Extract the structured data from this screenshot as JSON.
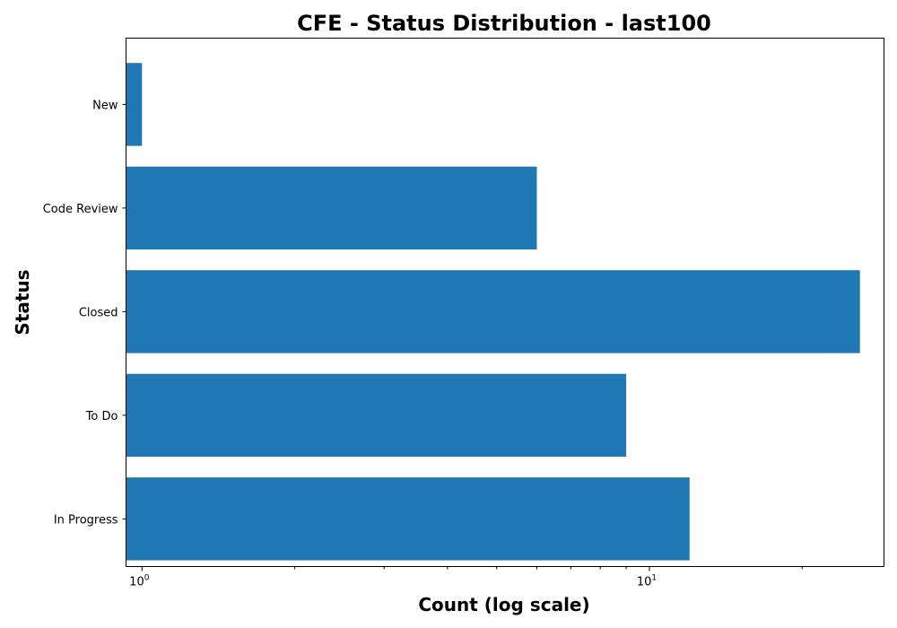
{
  "chart_data": {
    "type": "bar",
    "orientation": "horizontal",
    "title": "CFE - Status Distribution - last100",
    "xlabel": "Count (log scale)",
    "ylabel": "Status",
    "x_scale": "log",
    "xlim": [
      0.93,
      29
    ],
    "categories": [
      "New",
      "Code Review",
      "Closed",
      "To Do",
      "In Progress"
    ],
    "values": [
      1,
      6,
      26,
      9,
      12
    ],
    "bar_color": "#1f77b4",
    "x_major_ticks": [
      {
        "base": "10",
        "exp": "0",
        "value": 1
      },
      {
        "base": "10",
        "exp": "1",
        "value": 10
      }
    ],
    "x_minor_ticks": [
      2,
      3,
      4,
      5,
      6,
      7,
      8,
      9,
      20
    ],
    "grid": false,
    "legend": null
  }
}
